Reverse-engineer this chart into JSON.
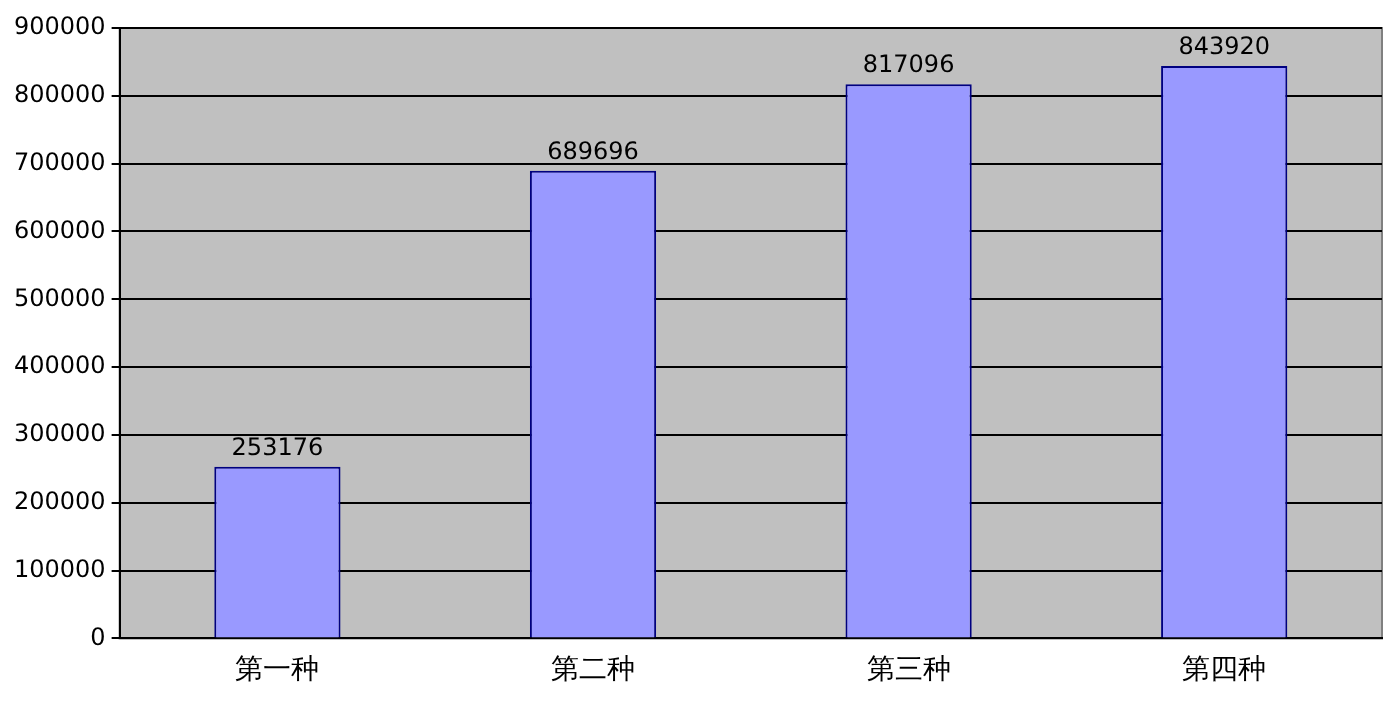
{
  "chart_data": {
    "type": "bar",
    "categories": [
      "第一种",
      "第二种",
      "第三种",
      "第四种"
    ],
    "values": [
      253176,
      689696,
      817096,
      843920
    ],
    "color": "#9999ff",
    "ylim": [
      0,
      900000
    ],
    "yticks": [
      0,
      100000,
      200000,
      300000,
      400000,
      500000,
      600000,
      700000,
      800000,
      900000
    ],
    "grid": "y",
    "data_labels": true,
    "legend": false
  }
}
